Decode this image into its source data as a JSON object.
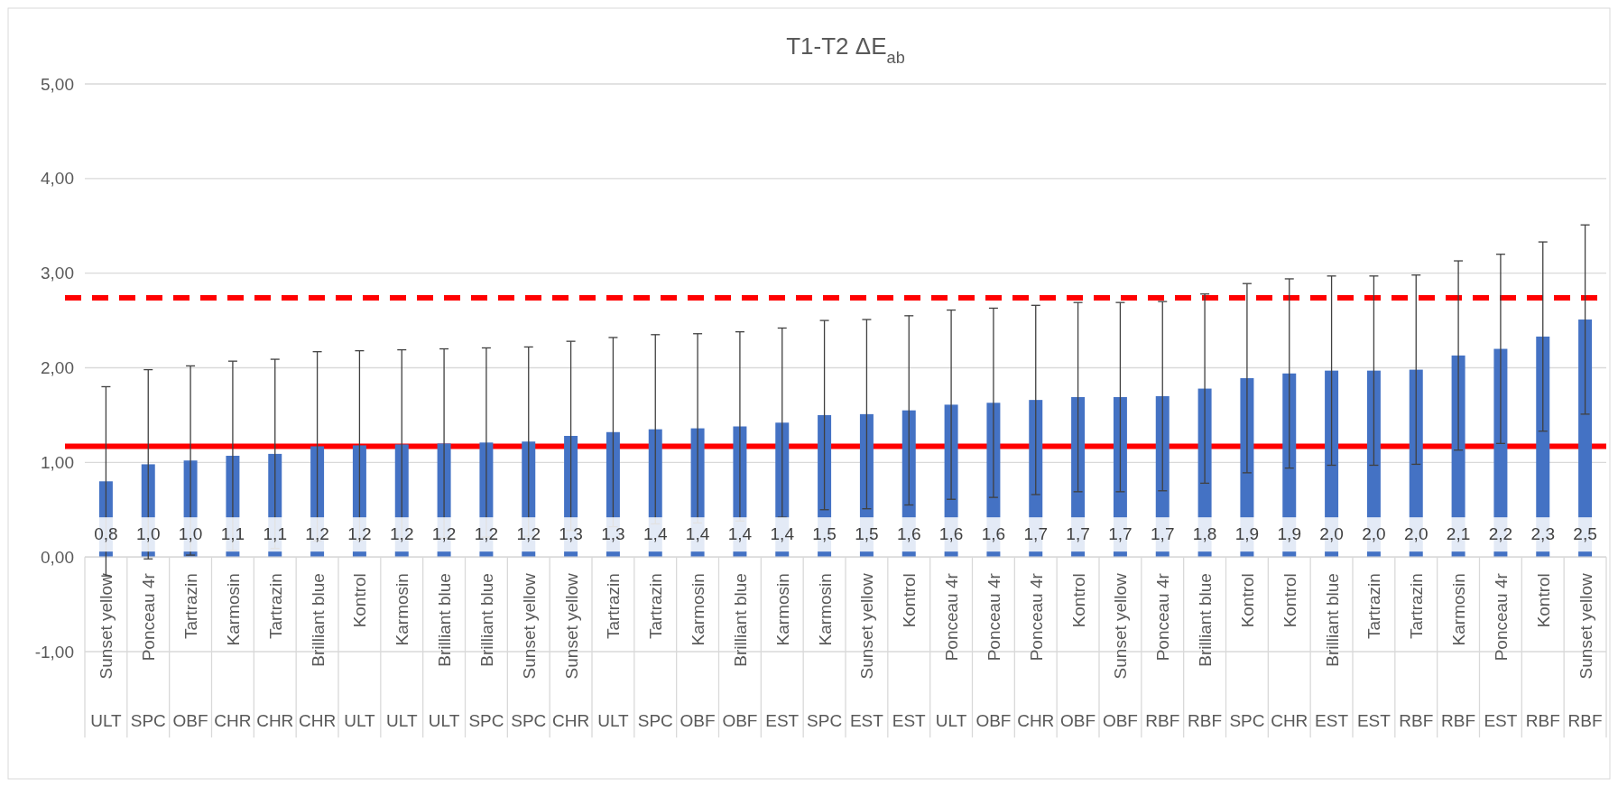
{
  "chart_data": {
    "type": "bar",
    "title": "T1-T2 ΔE$_{ab}$",
    "categories": [
      "Sunset yellow\nULT",
      "Ponceau 4r\nSPC",
      "Tartrazin\nOBF",
      "Karmosin\nCHR",
      "Tartrazin\nCHR",
      "Brilliant blue\nCHR",
      "Kontrol\nULT",
      "Karmosin\nULT",
      "Brilliant blue\nULT",
      "Brilliant blue\nSPC",
      "Sunset yellow\nSPC",
      "Sunset yellow\nCHR",
      "Tartrazin\nULT",
      "Tartrazin\nSPC",
      "Karmosin\nOBF",
      "Brilliant blue\nOBF",
      "Karmosin\nEST",
      "Karmosin\nSPC",
      "Sunset yellow\nEST",
      "Kontrol\nEST",
      "Ponceau 4r\nULT",
      "Ponceau 4r\nOBF",
      "Ponceau 4r\nCHR",
      "Kontrol\nOBF",
      "Sunset yellow\nOBF",
      "Ponceau 4r\nRBF",
      "Brilliant blue\nRBF",
      "Kontrol\nSPC",
      "Kontrol\nCHR",
      "Brilliant blue\nEST",
      "Tartrazin\nEST",
      "Tartrazin\nRBF",
      "Karmosin\nRBF",
      "Ponceau 4r\nEST",
      "Kontrol\nRBF",
      "Sunset yellow\nRBF"
    ],
    "series": [
      {
        "color": "#4472c4",
        "values": [
          0.8,
          0.98,
          1.02,
          1.07,
          1.09,
          1.17,
          1.18,
          1.19,
          1.2,
          1.21,
          1.22,
          1.28,
          1.32,
          1.35,
          1.36,
          1.38,
          1.42,
          1.5,
          1.51,
          1.55,
          1.61,
          1.63,
          1.66,
          1.69,
          1.69,
          1.7,
          1.78,
          1.89,
          1.94,
          1.97,
          1.97,
          1.98,
          2.13,
          2.2,
          2.33,
          2.51
        ],
        "errors": [
          1,
          1,
          1,
          1,
          1,
          1,
          1,
          1,
          1,
          1,
          1,
          1,
          1,
          1,
          1,
          1,
          1,
          1,
          1,
          1,
          1,
          1,
          1,
          1,
          1,
          1,
          1,
          1,
          1,
          1,
          1,
          1,
          1,
          1,
          1,
          1
        ],
        "value_labels": [
          "0,8",
          "1,0",
          "1,0",
          "1,1",
          "1,1",
          "1,2",
          "1,2",
          "1,2",
          "1,2",
          "1,2",
          "1,2",
          "1,3",
          "1,3",
          "1,4",
          "1,4",
          "1,4",
          "1,4",
          "1,5",
          "1,5",
          "1,6",
          "1,6",
          "1,6",
          "1,7",
          "1,7",
          "1,7",
          "1,7",
          "1,8",
          "1,9",
          "1,9",
          "2,0",
          "2,0",
          "2,0",
          "2,1",
          "2,2",
          "2,3",
          "2,5"
        ]
      }
    ],
    "ylim": [
      -1,
      5
    ],
    "yticks": [
      {
        "value": -1,
        "label": "-1,00"
      },
      {
        "value": 0,
        "label": "0,00"
      },
      {
        "value": 1,
        "label": "1,00"
      },
      {
        "value": 2,
        "label": "2,00"
      },
      {
        "value": 3,
        "label": "3,00"
      },
      {
        "value": 4,
        "label": "4,00"
      },
      {
        "value": 5,
        "label": "5,00"
      }
    ],
    "grid": "y",
    "ref_lines": [
      {
        "axis": "y",
        "value": 2.74,
        "color": "#ff0000",
        "line_style": "dashed"
      },
      {
        "axis": "y",
        "value": 1.17,
        "color": "#ff0000",
        "line_style": "solid"
      }
    ]
  }
}
